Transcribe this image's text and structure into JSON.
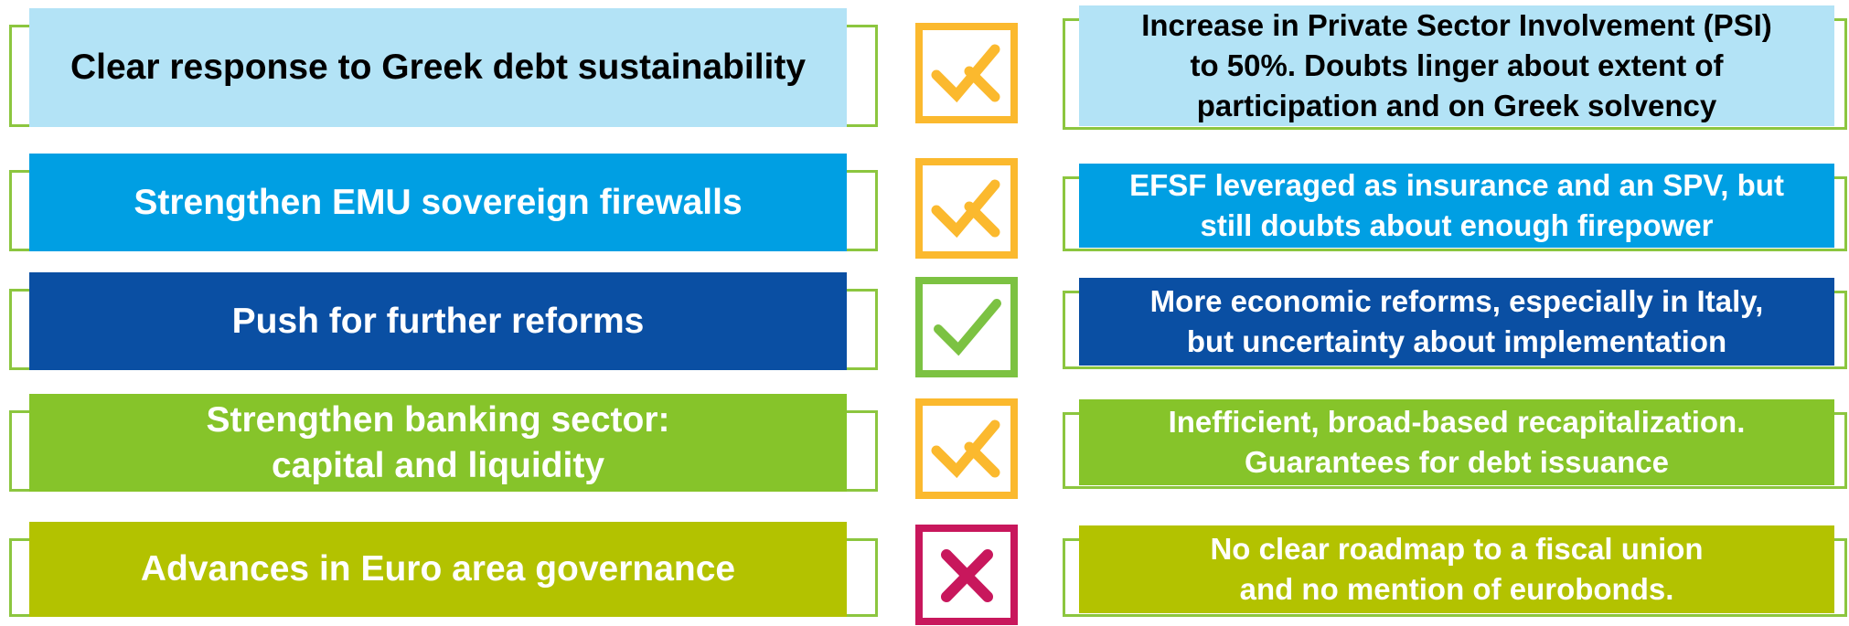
{
  "rows": [
    {
      "goal": [
        "Clear response to Greek debt sustainability"
      ],
      "outcome": [
        "Increase in Private Sector Involvement (PSI)",
        "to 50%. Doubts linger about extent of",
        "participation and on Greek solvency"
      ]
    },
    {
      "goal": [
        "Strengthen EMU sovereign firewalls"
      ],
      "outcome": [
        "EFSF leveraged as insurance and an SPV, but",
        "still doubts about enough firepower"
      ]
    },
    {
      "goal": [
        "Push for further reforms"
      ],
      "outcome": [
        "More economic reforms, especially in Italy,",
        "but uncertainty about implementation"
      ]
    },
    {
      "goal": [
        "Strengthen banking sector:",
        "capital and liquidity"
      ],
      "outcome": [
        "Inefficient, broad-based recapitalization.",
        "Guarantees for debt issuance"
      ]
    },
    {
      "goal": [
        "Advances in Euro area governance"
      ],
      "outcome": [
        "No clear roadmap to a fiscal union",
        "and no mention of eurobonds."
      ]
    }
  ]
}
